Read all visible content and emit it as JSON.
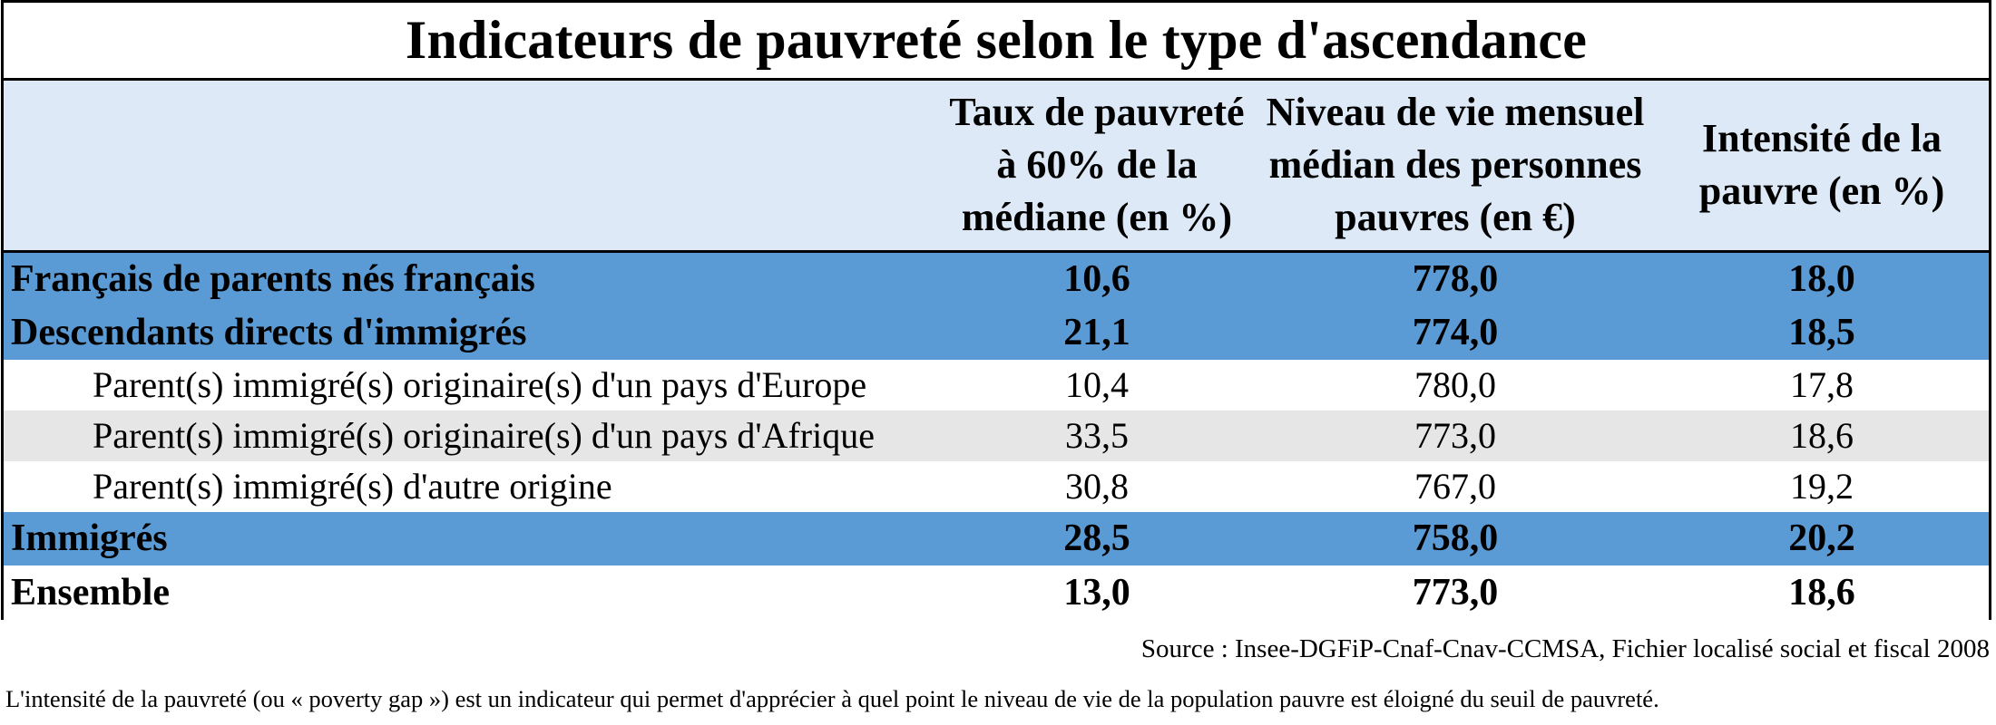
{
  "chart_data": {
    "type": "table",
    "title": "Indicateurs de pauvreté selon le type d'ascendance",
    "columns": [
      "",
      "Taux de pauvreté à 60% de la médiane (en %)",
      "Niveau de vie mensuel médian des personnes pauvres (en €)",
      "Intensité de la pauvre (en %)"
    ],
    "column_lines": [
      [],
      [
        "Taux de pauvreté",
        "à 60% de la",
        "médiane (en %)"
      ],
      [
        "Niveau de vie mensuel",
        "médian des personnes",
        "pauvres (en €)"
      ],
      [
        "Intensité de la",
        "pauvre (en %)"
      ]
    ],
    "rows": [
      {
        "label": "Français de parents nés français",
        "level": "main",
        "values": [
          "10,6",
          "778,0",
          "18,0"
        ]
      },
      {
        "label": "Descendants directs d'immigrés",
        "level": "main",
        "values": [
          "21,1",
          "774,0",
          "18,5"
        ]
      },
      {
        "label": "Parent(s) immigré(s) originaire(s) d'un pays d'Europe",
        "level": "sub",
        "values": [
          "10,4",
          "780,0",
          "17,8"
        ]
      },
      {
        "label": "Parent(s) immigré(s) originaire(s) d'un pays d'Afrique",
        "level": "sub",
        "values": [
          "33,5",
          "773,0",
          "18,6"
        ]
      },
      {
        "label": "Parent(s) immigré(s) d'autre origine",
        "level": "sub",
        "values": [
          "30,8",
          "767,0",
          "19,2"
        ]
      },
      {
        "label": "Immigrés",
        "level": "main",
        "values": [
          "28,5",
          "758,0",
          "20,2"
        ]
      },
      {
        "label": "Ensemble",
        "level": "total",
        "values": [
          "13,0",
          "773,0",
          "18,6"
        ]
      }
    ],
    "source": "Source : Insee-DGFiP-Cnaf-Cnav-CCMSA, Fichier localisé social et fiscal 2008",
    "note": "L'intensité de la pauvreté (ou « poverty gap ») est un indicateur qui permet d'apprécier à quel point le niveau de vie de la population pauvre est éloigné du seuil de pauvreté."
  },
  "colors": {
    "header_bg": "#dde9f6",
    "main_row_bg": "#5b9bd5",
    "alt_row_bg": "#e6e6e6",
    "border": "#000000"
  }
}
